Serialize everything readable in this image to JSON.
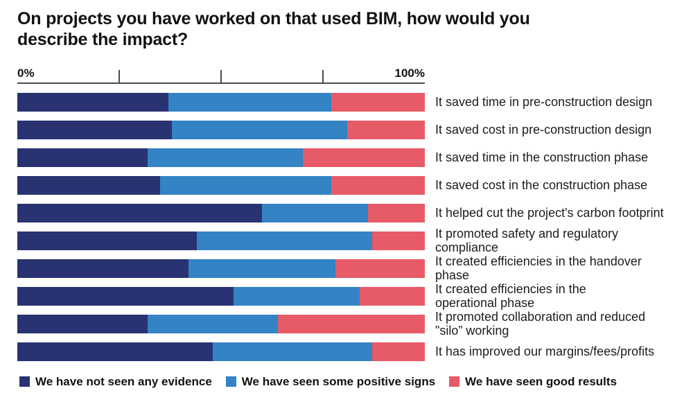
{
  "axis": {
    "min_label": "0%",
    "max_label": "100%"
  },
  "colors": {
    "navy": "#293372",
    "blue": "#3383c5",
    "red": "#e65b67",
    "axis_line": "#4a4a4a",
    "text": "#111111"
  },
  "chart_data": {
    "type": "bar",
    "orientation": "horizontal",
    "stacked": true,
    "unit": "percent",
    "title": "On projects you have worked on that used BIM, how would you\ndescribe the impact?",
    "xlabel": "",
    "ylabel": "",
    "xlim": [
      0,
      100
    ],
    "x_ticks": [
      0,
      25,
      50,
      75,
      100
    ],
    "grid": false,
    "legend_position": "bottom",
    "categories": [
      "It saved time in pre-construction design",
      "It saved cost in pre-construction design",
      "It saved time in the construction phase",
      "It saved cost in the construction phase",
      "It helped cut the project's carbon footprint",
      "It promoted safety and regulatory\ncompliance",
      "It created efficiencies in the handover\nphase",
      "It created efficiencies in the\noperational phase",
      "It promoted collaboration and reduced\n\"silo” working",
      "It has improved our margins/fees/profits"
    ],
    "series": [
      {
        "name": "We have not seen any evidence",
        "color": "#293372",
        "values": [
          37,
          38,
          32,
          35,
          60,
          44,
          42,
          53,
          32,
          48
        ]
      },
      {
        "name": "We have seen some positive signs",
        "color": "#3383c5",
        "values": [
          40,
          43,
          38,
          42,
          26,
          43,
          36,
          31,
          32,
          39
        ]
      },
      {
        "name": "We have seen good results",
        "color": "#e65b67",
        "values": [
          23,
          19,
          30,
          23,
          14,
          13,
          22,
          16,
          36,
          13
        ]
      }
    ]
  }
}
